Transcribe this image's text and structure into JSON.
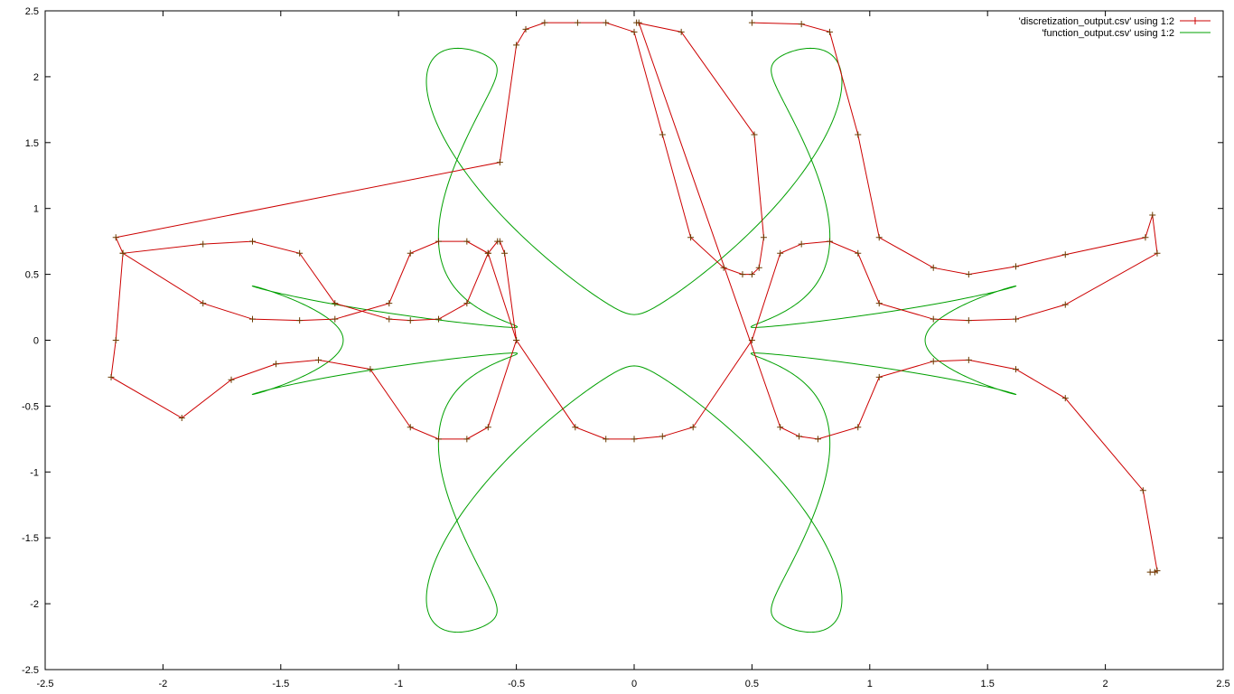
{
  "chart_data": {
    "type": "line",
    "title": "",
    "xlabel": "",
    "ylabel": "",
    "xlim": [
      -2.5,
      2.5
    ],
    "ylim": [
      -2.5,
      2.5
    ],
    "x_ticks": [
      "-2.5",
      "-2",
      "-1.5",
      "-1",
      "-0.5",
      "0",
      "0.5",
      "1",
      "1.5",
      "2",
      "2.5"
    ],
    "y_ticks": [
      "2.5",
      "2",
      "1.5",
      "1",
      "0.5",
      "0",
      "-0.5",
      "-1",
      "-1.5",
      "-2",
      "-2.5"
    ],
    "grid": false,
    "legend_position": "top-right",
    "series": [
      {
        "name": "'discretization_output.csv' using 1:2",
        "color": "#cc0000",
        "marker": "plus",
        "x": [
          0.5,
          0.71,
          0.83,
          0.95,
          1.04,
          1.27,
          1.42,
          1.62,
          1.83,
          2.17,
          2.2,
          2.22,
          1.83,
          1.62,
          1.42,
          1.27,
          1.04,
          0.95,
          0.83,
          0.71,
          0.62,
          0.5,
          0.25,
          0.12,
          0.0,
          -0.12,
          -0.25,
          -0.5,
          -0.55,
          -0.57,
          -0.58,
          -0.62,
          -0.71,
          -0.83,
          -0.95,
          -1.04,
          -1.27,
          -1.42,
          -1.62,
          -1.83,
          -2.17,
          -2.2,
          -2.22,
          -1.92,
          -1.71,
          -1.52,
          -1.34,
          -1.12,
          -0.95,
          -0.83,
          -0.71,
          -0.62,
          -0.5,
          -0.62,
          -0.71,
          -0.83,
          -0.95,
          -1.04,
          -1.27,
          -1.42,
          -1.62,
          -1.83,
          -2.17,
          -2.2,
          -0.57,
          -0.5,
          -0.46,
          -0.38,
          -0.24,
          -0.12,
          0.0,
          0.12,
          0.24,
          0.38,
          0.46,
          0.5,
          0.53,
          0.55,
          0.51,
          0.2,
          0.01,
          0.02,
          0.62,
          0.7,
          0.78,
          0.95,
          1.04,
          1.27,
          1.42,
          1.62,
          1.83,
          2.16,
          2.22,
          2.21,
          2.19
        ],
        "y": [
          2.41,
          2.4,
          2.34,
          1.56,
          0.78,
          0.55,
          0.5,
          0.56,
          0.65,
          0.78,
          0.95,
          0.66,
          0.27,
          0.16,
          0.15,
          0.16,
          0.28,
          0.66,
          0.75,
          0.73,
          0.66,
          0.0,
          -0.66,
          -0.73,
          -0.75,
          -0.75,
          -0.66,
          0.0,
          0.66,
          0.75,
          0.75,
          0.66,
          0.28,
          0.16,
          0.15,
          0.16,
          0.28,
          0.66,
          0.75,
          0.73,
          0.66,
          0.0,
          -0.28,
          -0.59,
          -0.3,
          -0.18,
          -0.15,
          -0.22,
          -0.66,
          -0.75,
          -0.75,
          -0.66,
          0.0,
          0.66,
          0.75,
          0.75,
          0.66,
          0.28,
          0.16,
          0.15,
          0.16,
          0.28,
          0.66,
          0.78,
          1.35,
          2.24,
          2.36,
          2.41,
          2.41,
          2.41,
          2.34,
          1.56,
          0.78,
          0.55,
          0.5,
          0.5,
          0.55,
          0.78,
          1.56,
          2.34,
          2.41,
          2.41,
          -0.66,
          -0.73,
          -0.75,
          -0.66,
          -0.28,
          -0.16,
          -0.15,
          -0.22,
          -0.44,
          -1.14,
          -1.75,
          -1.76,
          -1.76
        ]
      },
      {
        "name": "'function_output.csv' using 1:2",
        "color": "#00a000",
        "marker": "none",
        "x": [],
        "y": []
      }
    ]
  }
}
